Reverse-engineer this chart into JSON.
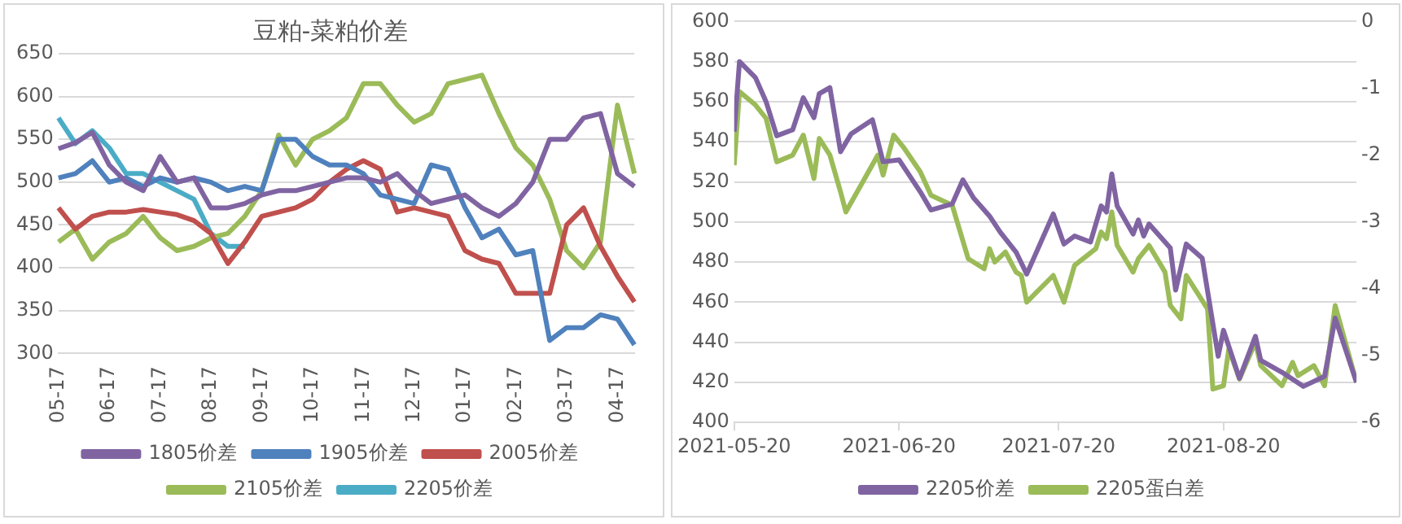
{
  "chart_data": [
    {
      "type": "line",
      "title": "豆粕-菜粕价差",
      "categories": [
        "05-17",
        null,
        null,
        "06-17",
        null,
        null,
        "07-17",
        null,
        null,
        "08-17",
        null,
        null,
        "09-17",
        null,
        null,
        "10-17",
        null,
        null,
        "11-17",
        null,
        null,
        "12-17",
        null,
        null,
        "01-17",
        null,
        null,
        "02-17",
        null,
        null,
        "03-17",
        null,
        null,
        "04-17",
        null
      ],
      "series": [
        {
          "name": "1805价差",
          "color": "#8064a2",
          "values": [
            539,
            546,
            558,
            520,
            500,
            490,
            530,
            500,
            505,
            470,
            470,
            475,
            485,
            490,
            490,
            495,
            500,
            505,
            505,
            500,
            510,
            490,
            475,
            480,
            485,
            470,
            460,
            475,
            500,
            550,
            550,
            575,
            580,
            510,
            495
          ]
        },
        {
          "name": "1905价差",
          "color": "#4f81bd",
          "values": [
            505,
            510,
            525,
            500,
            505,
            495,
            505,
            500,
            505,
            500,
            490,
            495,
            490,
            550,
            550,
            530,
            520,
            520,
            510,
            485,
            480,
            475,
            520,
            515,
            470,
            435,
            445,
            415,
            420,
            315,
            330,
            330,
            345,
            340,
            310
          ]
        },
        {
          "name": "2005价差",
          "color": "#c0504d",
          "values": [
            470,
            445,
            460,
            465,
            465,
            468,
            465,
            462,
            455,
            440,
            405,
            430,
            460,
            465,
            470,
            480,
            500,
            515,
            525,
            515,
            465,
            470,
            465,
            460,
            420,
            410,
            405,
            370,
            370,
            370,
            450,
            470,
            425,
            390,
            360
          ]
        },
        {
          "name": "2105价差",
          "color": "#9bbb59",
          "values": [
            430,
            445,
            410,
            430,
            440,
            460,
            435,
            420,
            425,
            435,
            440,
            460,
            490,
            555,
            520,
            550,
            560,
            575,
            615,
            615,
            590,
            570,
            580,
            615,
            620,
            625,
            580,
            540,
            520,
            480,
            420,
            400,
            430,
            590,
            510
          ]
        },
        {
          "name": "2205价差",
          "color": "#4bacc6",
          "values": [
            575,
            545,
            560,
            540,
            510,
            510,
            500,
            490,
            480,
            440,
            425,
            425,
            null,
            null,
            null,
            null,
            null,
            null,
            null,
            null,
            null,
            null,
            null,
            null,
            null,
            null,
            null,
            null,
            null,
            null,
            null,
            null,
            null,
            null,
            null
          ]
        }
      ],
      "ylim": [
        300,
        650
      ],
      "yticks": [
        300,
        350,
        400,
        450,
        500,
        550,
        600,
        650
      ],
      "grid": "y",
      "legend": "bottom"
    },
    {
      "type": "line",
      "xlim": [
        "2021-05-20",
        "2021-09-14"
      ],
      "xticks": [
        "2021-05-20",
        "2021-06-20",
        "2021-07-20",
        "2021-08-20"
      ],
      "series": [
        {
          "name": "2205价差",
          "color": "#8064a2",
          "x": [
            "2021-05-20",
            "2021-05-21",
            "2021-05-24",
            "2021-05-26",
            "2021-05-28",
            "2021-05-31",
            "2021-06-02",
            "2021-06-04",
            "2021-06-05",
            "2021-06-07",
            "2021-06-09",
            "2021-06-11",
            "2021-06-15",
            "2021-06-17",
            "2021-06-20",
            "2021-06-24",
            "2021-06-26",
            "2021-06-30",
            "2021-07-02",
            "2021-07-04",
            "2021-07-07",
            "2021-07-09",
            "2021-07-12",
            "2021-07-14",
            "2021-07-19",
            "2021-07-21",
            "2021-07-23",
            "2021-07-26",
            "2021-07-28",
            "2021-07-29",
            "2021-07-30",
            "2021-07-31",
            "2021-08-03",
            "2021-08-04",
            "2021-08-05",
            "2021-08-06",
            "2021-08-10",
            "2021-08-11",
            "2021-08-13",
            "2021-08-16",
            "2021-08-19",
            "2021-08-20",
            "2021-08-23",
            "2021-08-26",
            "2021-08-27",
            "2021-08-31",
            "2021-09-04",
            "2021-09-08",
            "2021-09-10",
            "2021-09-14"
          ],
          "values": [
            545,
            580,
            572,
            560,
            543,
            546,
            562,
            552,
            564,
            567,
            535,
            544,
            551,
            530,
            531,
            515,
            506,
            509,
            521,
            512,
            503,
            495,
            485,
            474,
            504,
            489,
            493,
            490,
            508,
            505,
            524,
            508,
            494,
            501,
            493,
            499,
            487,
            466,
            489,
            482,
            433,
            446,
            422,
            443,
            431,
            425,
            418,
            423,
            452,
            420
          ]
        },
        {
          "name": "2205蛋白差",
          "color": "#9bbb59",
          "axis": "y2",
          "x": [
            "2021-05-20",
            "2021-05-21",
            "2021-05-24",
            "2021-05-26",
            "2021-05-28",
            "2021-05-31",
            "2021-06-02",
            "2021-06-04",
            "2021-06-05",
            "2021-06-07",
            "2021-06-09",
            "2021-06-10",
            "2021-06-16",
            "2021-06-17",
            "2021-06-19",
            "2021-06-21",
            "2021-06-24",
            "2021-06-26",
            "2021-06-30",
            "2021-07-03",
            "2021-07-06",
            "2021-07-07",
            "2021-07-08",
            "2021-07-10",
            "2021-07-12",
            "2021-07-13",
            "2021-07-14",
            "2021-07-19",
            "2021-07-21",
            "2021-07-23",
            "2021-07-27",
            "2021-07-28",
            "2021-07-29",
            "2021-07-30",
            "2021-07-31",
            "2021-08-03",
            "2021-08-04",
            "2021-08-06",
            "2021-08-09",
            "2021-08-10",
            "2021-08-12",
            "2021-08-13",
            "2021-08-17",
            "2021-08-18",
            "2021-08-20",
            "2021-08-21",
            "2021-08-23",
            "2021-08-26",
            "2021-08-27",
            "2021-08-31",
            "2021-09-02",
            "2021-09-03",
            "2021-09-06",
            "2021-09-08",
            "2021-09-10",
            "2021-09-14"
          ],
          "values": [
            -2.15,
            -1.05,
            -1.25,
            -1.45,
            -2.1,
            -2.0,
            -1.7,
            -2.35,
            -1.75,
            -2.0,
            -2.55,
            -2.85,
            -2.0,
            -2.3,
            -1.7,
            -1.9,
            -2.25,
            -2.6,
            -2.75,
            -3.55,
            -3.7,
            -3.4,
            -3.6,
            -3.45,
            -3.75,
            -3.8,
            -4.2,
            -3.8,
            -4.2,
            -3.65,
            -3.4,
            -3.15,
            -3.25,
            -2.85,
            -3.35,
            -3.75,
            -3.55,
            -3.35,
            -3.75,
            -4.25,
            -4.45,
            -3.8,
            -4.3,
            -5.5,
            -5.45,
            -4.9,
            -5.35,
            -4.8,
            -5.15,
            -5.45,
            -5.1,
            -5.3,
            -5.15,
            -5.45,
            -4.25,
            -5.4
          ]
        }
      ],
      "ylim": [
        400,
        600
      ],
      "yticks": [
        400,
        420,
        440,
        460,
        480,
        500,
        520,
        540,
        560,
        580,
        600
      ],
      "y2lim": [
        -6,
        0
      ],
      "y2ticks": [
        -6,
        -5,
        -4,
        -3,
        -2,
        -1,
        0
      ],
      "grid": "y",
      "legend": "bottom"
    }
  ]
}
